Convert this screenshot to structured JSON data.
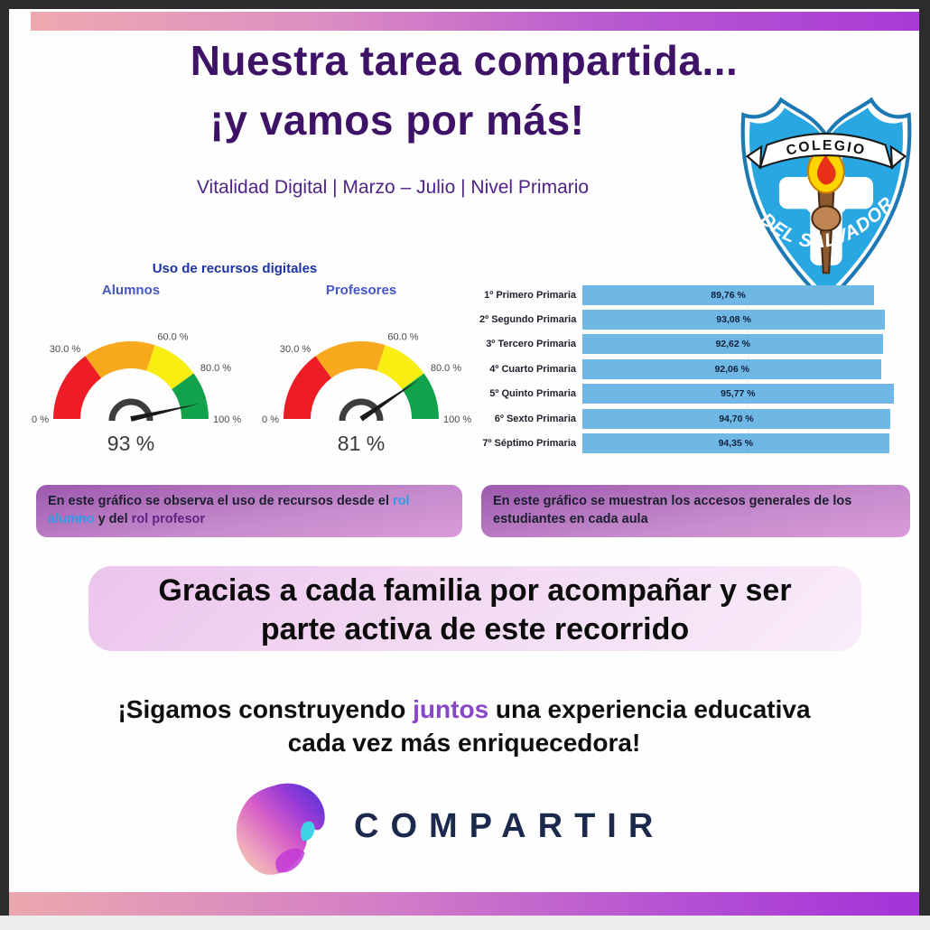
{
  "frame": {
    "background": "#2c2c2e",
    "page_background": "#fefefe"
  },
  "header": {
    "title_line1": "Nuestra tarea compartida...",
    "title_line2": "¡y vamos por más!",
    "subtitle": "Vitalidad Digital | Marzo – Julio | Nivel Primario",
    "title_color": "#3e1367",
    "top_bar_gradient": [
      "#eea9b0",
      "#a83bd6"
    ]
  },
  "badge": {
    "banner": "COLEGIO",
    "name": "DEL SALVADOR",
    "shield_color": "#29a7e2"
  },
  "chart_data": [
    {
      "type": "gauge",
      "title": "Uso de recursos digitales",
      "min": 0,
      "max": 100,
      "segments": [
        {
          "from": 0,
          "to": 30,
          "color": "#ee1c25"
        },
        {
          "from": 30,
          "to": 60,
          "color": "#f8a81d"
        },
        {
          "from": 60,
          "to": 80,
          "color": "#f8ee11"
        },
        {
          "from": 80,
          "to": 100,
          "color": "#12a24b"
        }
      ],
      "ticks": [
        {
          "value": 0,
          "label": "0 %"
        },
        {
          "value": 30,
          "label": "30.0 %"
        },
        {
          "value": 60,
          "label": "60.0 %"
        },
        {
          "value": 80,
          "label": "80.0 %"
        },
        {
          "value": 100,
          "label": "100 %"
        }
      ],
      "gauges": [
        {
          "label": "Alumnos",
          "value": 93,
          "display": "93 %"
        },
        {
          "label": "Profesores",
          "value": 81,
          "display": "81 %"
        }
      ]
    },
    {
      "type": "bar",
      "orientation": "horizontal",
      "categories": [
        "1º Primero Primaria",
        "2º Segundo Primaria",
        "3º Tercero Primaria",
        "4º Cuarto Primaria",
        "5º Quinto Primaria",
        "6º Sexto Primaria",
        "7º Séptimo Primaria"
      ],
      "values": [
        89.76,
        93.08,
        92.62,
        92.06,
        95.77,
        94.7,
        94.35
      ],
      "value_labels": [
        "89,76 %",
        "93,08 %",
        "92,62 %",
        "92,06 %",
        "95,77 %",
        "94,70 %",
        "94,35 %"
      ],
      "bar_color": "#6fb7e5",
      "xlim": [
        0,
        100
      ],
      "grid": "dotted-mid"
    }
  ],
  "captions": {
    "left": {
      "pre": "En este gráfico se observa el uso de recursos desde el ",
      "highlight_blue": "rol alumno",
      "mid": " y del ",
      "highlight_purple": "rol profesor",
      "highlight_blue_color": "#2f9ce8",
      "highlight_purple_color": "#5c2586"
    },
    "right": {
      "text": "En este gráfico se muestran los accesos generales de los estudiantes en cada aula"
    }
  },
  "thanks": {
    "line1": "Gracias a cada familia por acompañar y ser",
    "line2": "parte activa de este recorrido"
  },
  "closing": {
    "line1_pre": "¡Sigamos construyendo ",
    "line1_highlight": "juntos",
    "line1_post": " una experiencia educativa",
    "line2": "cada vez más enriquecedora!",
    "highlight_color": "#8a46c8"
  },
  "logo": {
    "text": "COMPARTIR",
    "text_color": "#1b2a4c"
  }
}
